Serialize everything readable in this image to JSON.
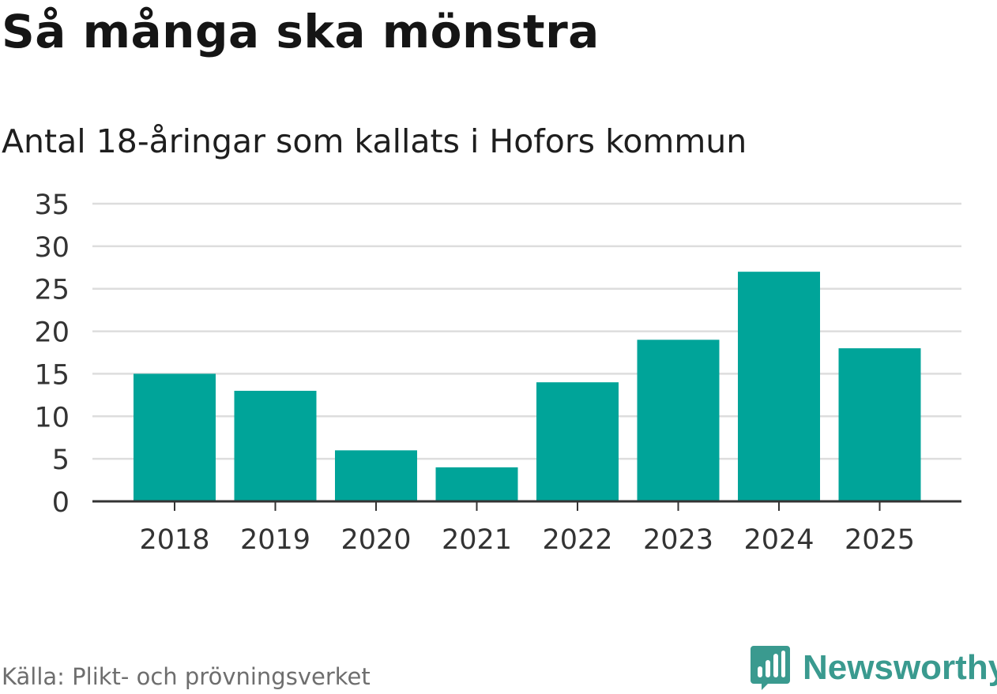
{
  "header": {
    "title": "Så många ska mönstra",
    "subtitle": "Antal 18-åringar som kallats i Hofors kommun"
  },
  "footer": {
    "source": "Källa: Plikt- och prövningsverket",
    "brand": "Newsworthy",
    "brand_color": "#3a9a8f"
  },
  "chart_data": {
    "type": "bar",
    "categories": [
      "2018",
      "2019",
      "2020",
      "2021",
      "2022",
      "2023",
      "2024",
      "2025"
    ],
    "values": [
      15,
      13,
      6,
      4,
      14,
      19,
      27,
      18
    ],
    "ylim": [
      0,
      35
    ],
    "yticks": [
      0,
      5,
      10,
      15,
      20,
      25,
      30,
      35
    ],
    "bar_color": "#00a499",
    "grid": true,
    "xlabel": "",
    "ylabel": ""
  }
}
